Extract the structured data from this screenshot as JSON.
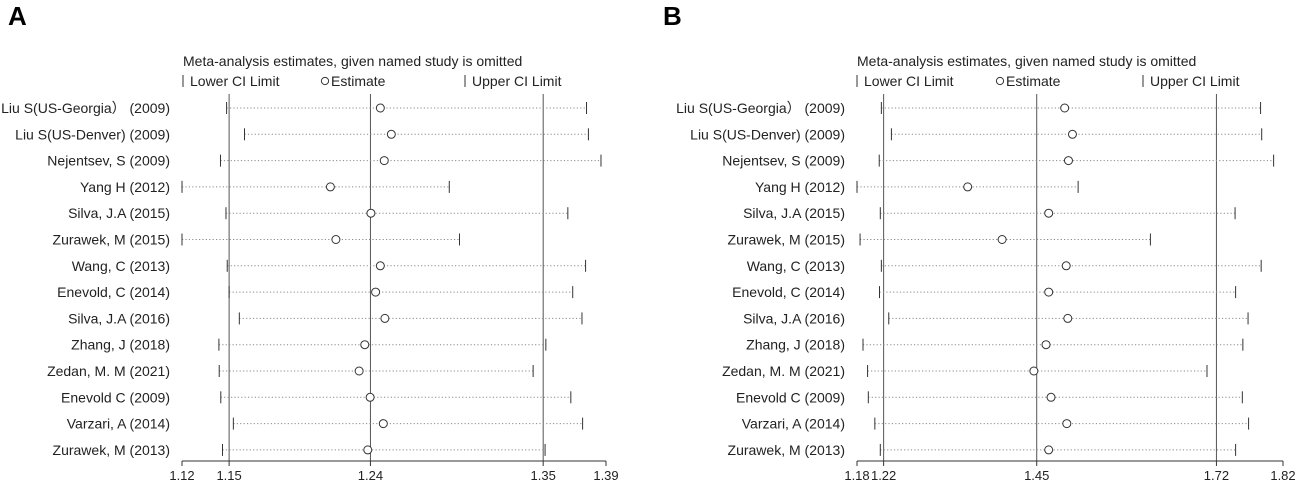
{
  "chart_data": [
    {
      "panel": "A",
      "type": "scatter",
      "title": "Meta-analysis estimates, given named study is omitted",
      "legend": {
        "lower": "Lower CI Limit",
        "estimate": "Estimate",
        "upper": "Upper CI Limit"
      },
      "xlim": [
        1.12,
        1.39
      ],
      "ticks": [
        1.12,
        1.15,
        1.24,
        1.35,
        1.39
      ],
      "tick_labels": [
        "1.12",
        "1.15",
        "1.24",
        "1.35",
        "1.39"
      ],
      "reference_lines": [
        1.15,
        1.24,
        1.35
      ],
      "studies": [
        {
          "label": "Liu S(US-Georgia） (2009)",
          "lower": 1.1484,
          "estimate": 1.2463,
          "upper": 1.3776
        },
        {
          "label": "Liu S(US-Denver) (2009)",
          "lower": 1.1598,
          "estimate": 1.2533,
          "upper": 1.3788
        },
        {
          "label": "Nejentsev, S (2009)",
          "lower": 1.1445,
          "estimate": 1.2488,
          "upper": 1.3868
        },
        {
          "label": "Yang H (2012)",
          "lower": 1.12,
          "estimate": 1.2145,
          "upper": 1.2902
        },
        {
          "label": "Silva, J.A (2015)",
          "lower": 1.148,
          "estimate": 1.2403,
          "upper": 1.3657
        },
        {
          "label": "Zurawek, M (2015)",
          "lower": 1.12,
          "estimate": 1.218,
          "upper": 1.2967
        },
        {
          "label": "Wang, C (2013)",
          "lower": 1.1488,
          "estimate": 1.2463,
          "upper": 1.377
        },
        {
          "label": "Enevold, C (2014)",
          "lower": 1.15,
          "estimate": 1.2433,
          "upper": 1.3688
        },
        {
          "label": "Silva, J.A (2016)",
          "lower": 1.1565,
          "estimate": 1.2492,
          "upper": 1.3747
        },
        {
          "label": "Zhang, J (2018)",
          "lower": 1.1435,
          "estimate": 1.2364,
          "upper": 1.3517
        },
        {
          "label": "Zedan, M. M (2021)",
          "lower": 1.1437,
          "estimate": 1.2328,
          "upper": 1.3436
        },
        {
          "label": "Enevold C (2009)",
          "lower": 1.1447,
          "estimate": 1.2398,
          "upper": 1.3676
        },
        {
          "label": "Varzari, A (2014)",
          "lower": 1.1527,
          "estimate": 1.2482,
          "upper": 1.3751
        },
        {
          "label": "Zurawek, M (2013)",
          "lower": 1.1458,
          "estimate": 1.2383,
          "upper": 1.3512
        }
      ]
    },
    {
      "panel": "B",
      "type": "scatter",
      "title": "Meta-analysis estimates, given named study is omitted",
      "legend": {
        "lower": "Lower CI Limit",
        "estimate": "Estimate",
        "upper": "Upper CI Limit"
      },
      "xlim": [
        1.18,
        1.82
      ],
      "ticks": [
        1.18,
        1.22,
        1.45,
        1.72,
        1.82
      ],
      "tick_labels": [
        "1.18",
        "1.22",
        "1.45",
        "1.72",
        "1.82"
      ],
      "reference_lines": [
        1.22,
        1.45,
        1.72
      ],
      "studies": [
        {
          "label": "Liu S(US-Georgia） (2009)",
          "lower": 1.2166,
          "estimate": 1.492,
          "upper": 1.7863
        },
        {
          "label": "Liu S(US-Denver) (2009)",
          "lower": 1.2317,
          "estimate": 1.5037,
          "upper": 1.788
        },
        {
          "label": "Nejentsev, S (2009)",
          "lower": 1.2134,
          "estimate": 1.4977,
          "upper": 1.8059
        },
        {
          "label": "Yang H (2012)",
          "lower": 1.18,
          "estimate": 1.3463,
          "upper": 1.5122
        },
        {
          "label": "Silva, J.A (2015)",
          "lower": 1.215,
          "estimate": 1.468,
          "upper": 1.748
        },
        {
          "label": "Zurawek, M (2015)",
          "lower": 1.1846,
          "estimate": 1.398,
          "upper": 1.6208
        },
        {
          "label": "Wang, C (2013)",
          "lower": 1.2166,
          "estimate": 1.4943,
          "upper": 1.7872
        },
        {
          "label": "Enevold, C (2014)",
          "lower": 1.2138,
          "estimate": 1.468,
          "upper": 1.7488
        },
        {
          "label": "Silva, J.A (2016)",
          "lower": 1.2277,
          "estimate": 1.4967,
          "upper": 1.7675
        },
        {
          "label": "Zhang, J (2018)",
          "lower": 1.189,
          "estimate": 1.464,
          "upper": 1.7597
        },
        {
          "label": "Zedan, M. M (2021)",
          "lower": 1.1959,
          "estimate": 1.4457,
          "upper": 1.7058
        },
        {
          "label": "Enevold C (2009)",
          "lower": 1.197,
          "estimate": 1.4715,
          "upper": 1.7589
        },
        {
          "label": "Varzari, A (2014)",
          "lower": 1.2068,
          "estimate": 1.4952,
          "upper": 1.7683
        },
        {
          "label": "Zurawek, M (2013)",
          "lower": 1.215,
          "estimate": 1.468,
          "upper": 1.7488
        }
      ]
    }
  ]
}
